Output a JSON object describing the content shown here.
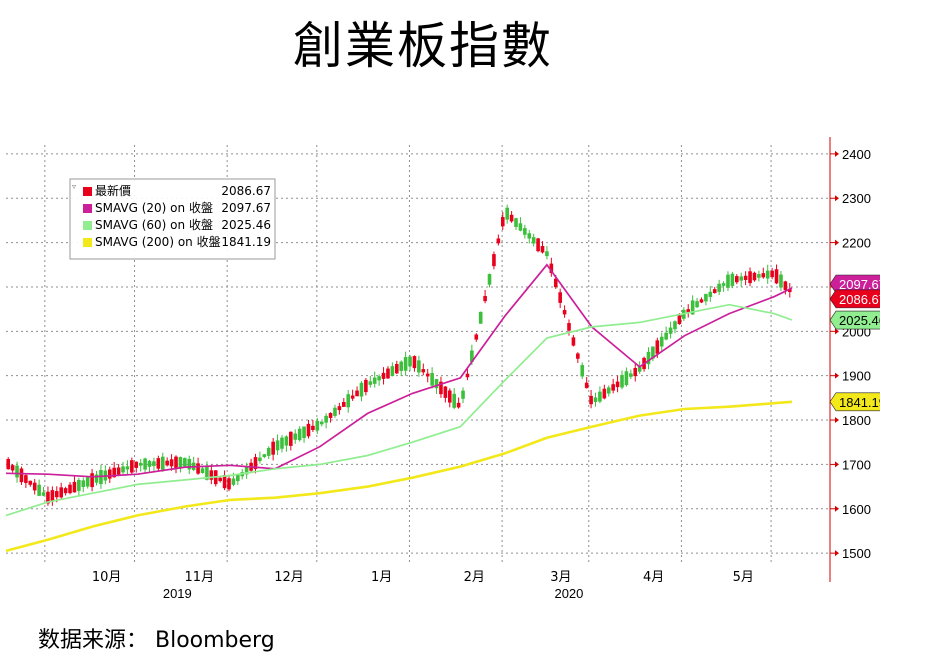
{
  "title": "創業板指數",
  "source": "数据来源：  Bloomberg",
  "legend": [
    {
      "label": "最新價",
      "value": "2086.67",
      "color": "#e8001c"
    },
    {
      "label": "SMAVG (20)  on 收盤",
      "value": "2097.67",
      "color": "#cc1f9a"
    },
    {
      "label": "SMAVG (60)  on 收盤",
      "value": "2025.46",
      "color": "#90ee90"
    },
    {
      "label": "SMAVG (200)  on 收盤",
      "value": "1841.19",
      "color": "#f2e81a"
    }
  ],
  "chart_data": {
    "type": "line",
    "x_labels": [
      "10月",
      "11月",
      "12月",
      "1月",
      "2月",
      "3月",
      "4月",
      "5月"
    ],
    "year_labels": [
      "2019",
      "2020"
    ],
    "y_ticks": [
      1500,
      1600,
      1700,
      1800,
      1900,
      2000,
      2100,
      2200,
      2300,
      2400
    ],
    "ylim": [
      1480,
      2420
    ],
    "grid": true,
    "x": [
      "2019-09-02",
      "2019-09-16",
      "2019-10-01",
      "2019-10-16",
      "2019-11-01",
      "2019-11-16",
      "2019-12-01",
      "2019-12-16",
      "2020-01-01",
      "2020-01-16",
      "2020-02-01",
      "2020-02-16",
      "2020-03-01",
      "2020-03-16",
      "2020-04-01",
      "2020-04-16",
      "2020-05-01",
      "2020-05-16",
      "2020-05-22"
    ],
    "series": [
      {
        "name": "最新價",
        "color": "#e8001c",
        "values": [
          1705,
          1625,
          1665,
          1700,
          1705,
          1655,
          1740,
          1790,
          1880,
          1935,
          1830,
          2270,
          2175,
          1840,
          1915,
          2040,
          2115,
          2130,
          2086.67
        ]
      },
      {
        "name": "SMAVG (20)  on 收盤",
        "color": "#cc1f9a",
        "values": [
          1680,
          1678,
          1672,
          1678,
          1694,
          1698,
          1690,
          1740,
          1815,
          1860,
          1895,
          2035,
          2150,
          2010,
          1920,
          1990,
          2040,
          2078,
          2097.67
        ]
      },
      {
        "name": "SMAVG (60)  on 收盤",
        "color": "#90ee90",
        "values": [
          1585,
          1615,
          1635,
          1655,
          1665,
          1675,
          1690,
          1700,
          1720,
          1750,
          1785,
          1890,
          1985,
          2010,
          2020,
          2040,
          2060,
          2040,
          2025.46
        ]
      },
      {
        "name": "SMAVG (200)  on 收盤",
        "color": "#f2e81a",
        "values": [
          1505,
          1530,
          1560,
          1585,
          1605,
          1620,
          1625,
          1635,
          1650,
          1670,
          1695,
          1725,
          1760,
          1785,
          1810,
          1825,
          1830,
          1838,
          1841.19
        ]
      }
    ]
  }
}
